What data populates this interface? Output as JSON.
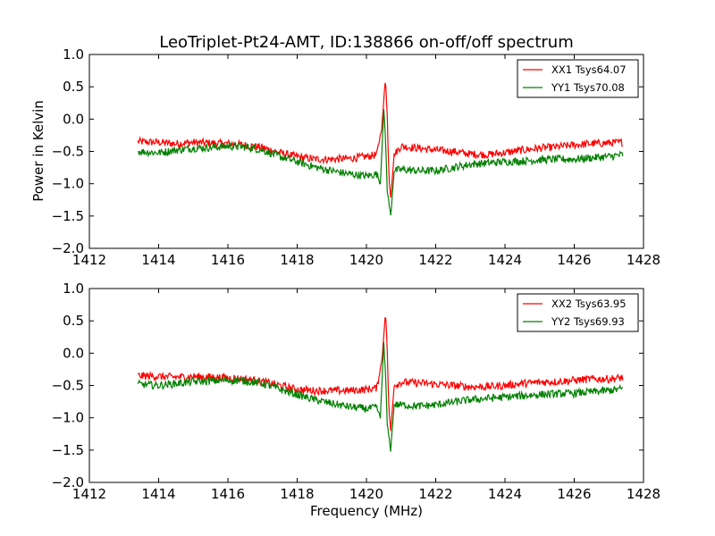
{
  "chart_data": {
    "type": "line",
    "title": "LeoTriplet-Pt24-AMT, ID:138866 on-off/off spectrum",
    "xlabel": "Frequency (MHz)",
    "ylabel": "Power in Kelvin",
    "xlim": [
      1412,
      1428
    ],
    "ylim": [
      -2.0,
      1.0
    ],
    "xticks": [
      "1412",
      "1414",
      "1416",
      "1418",
      "1420",
      "1422",
      "1424",
      "1426",
      "1428"
    ],
    "yticks": [
      "1.0",
      "0.5",
      "0.0",
      "−0.5",
      "−1.0",
      "−1.5",
      "−2.0"
    ],
    "grid": false,
    "legend_position": "top-right",
    "panels": [
      {
        "series": [
          {
            "name": "XX1 Tsys64.07",
            "color": "#ff0000",
            "x": [
              1413.4,
              1414.0,
              1414.5,
              1415.0,
              1415.5,
              1416.0,
              1416.5,
              1417.0,
              1417.5,
              1418.0,
              1418.5,
              1419.0,
              1419.5,
              1420.0,
              1420.3,
              1420.45,
              1420.55,
              1420.6,
              1420.65,
              1420.7,
              1420.8,
              1421.0,
              1421.5,
              1422.0,
              1422.5,
              1423.0,
              1423.5,
              1424.0,
              1424.5,
              1425.0,
              1425.5,
              1426.0,
              1426.5,
              1427.0,
              1427.4
            ],
            "y": [
              -0.35,
              -0.36,
              -0.38,
              -0.36,
              -0.37,
              -0.38,
              -0.4,
              -0.44,
              -0.52,
              -0.58,
              -0.62,
              -0.62,
              -0.61,
              -0.58,
              -0.55,
              -0.1,
              0.65,
              0.05,
              -0.9,
              -1.2,
              -0.55,
              -0.42,
              -0.45,
              -0.48,
              -0.5,
              -0.54,
              -0.55,
              -0.52,
              -0.48,
              -0.45,
              -0.43,
              -0.4,
              -0.38,
              -0.37,
              -0.36
            ]
          },
          {
            "name": "YY1 Tsys70.08",
            "color": "#008000",
            "x": [
              1413.4,
              1414.0,
              1414.5,
              1415.0,
              1415.5,
              1416.0,
              1416.5,
              1417.0,
              1417.5,
              1418.0,
              1418.5,
              1419.0,
              1419.5,
              1420.0,
              1420.3,
              1420.4,
              1420.5,
              1420.55,
              1420.6,
              1420.7,
              1420.8,
              1421.0,
              1421.5,
              1422.0,
              1422.5,
              1423.0,
              1423.5,
              1424.0,
              1424.5,
              1425.0,
              1425.5,
              1426.0,
              1426.5,
              1427.0,
              1427.4
            ],
            "y": [
              -0.5,
              -0.52,
              -0.48,
              -0.45,
              -0.44,
              -0.42,
              -0.43,
              -0.48,
              -0.58,
              -0.66,
              -0.74,
              -0.8,
              -0.85,
              -0.88,
              -0.85,
              -1.0,
              0.15,
              -0.3,
              -1.1,
              -1.5,
              -0.8,
              -0.78,
              -0.8,
              -0.8,
              -0.75,
              -0.7,
              -0.68,
              -0.66,
              -0.65,
              -0.63,
              -0.62,
              -0.62,
              -0.6,
              -0.58,
              -0.55
            ]
          }
        ]
      },
      {
        "series": [
          {
            "name": "XX2 Tsys63.95",
            "color": "#ff0000",
            "x": [
              1413.4,
              1414.0,
              1414.5,
              1415.0,
              1415.5,
              1416.0,
              1416.5,
              1417.0,
              1417.5,
              1418.0,
              1418.5,
              1419.0,
              1419.5,
              1420.0,
              1420.3,
              1420.45,
              1420.55,
              1420.6,
              1420.65,
              1420.7,
              1420.8,
              1421.0,
              1421.5,
              1422.0,
              1422.5,
              1423.0,
              1423.5,
              1424.0,
              1424.5,
              1425.0,
              1425.5,
              1426.0,
              1426.5,
              1427.0,
              1427.4
            ],
            "y": [
              -0.35,
              -0.36,
              -0.37,
              -0.36,
              -0.37,
              -0.38,
              -0.4,
              -0.44,
              -0.5,
              -0.56,
              -0.58,
              -0.58,
              -0.58,
              -0.56,
              -0.54,
              -0.1,
              0.65,
              0.05,
              -0.9,
              -1.2,
              -0.5,
              -0.45,
              -0.46,
              -0.48,
              -0.5,
              -0.52,
              -0.52,
              -0.5,
              -0.47,
              -0.45,
              -0.44,
              -0.42,
              -0.4,
              -0.4,
              -0.38
            ]
          },
          {
            "name": "YY2 Tsys69.93",
            "color": "#008000",
            "x": [
              1413.4,
              1414.0,
              1414.5,
              1415.0,
              1415.5,
              1416.0,
              1416.5,
              1417.0,
              1417.5,
              1418.0,
              1418.5,
              1419.0,
              1419.5,
              1420.0,
              1420.3,
              1420.4,
              1420.5,
              1420.55,
              1420.6,
              1420.7,
              1420.8,
              1421.0,
              1421.5,
              1422.0,
              1422.5,
              1423.0,
              1423.5,
              1424.0,
              1424.5,
              1425.0,
              1425.5,
              1426.0,
              1426.5,
              1427.0,
              1427.4
            ],
            "y": [
              -0.48,
              -0.5,
              -0.47,
              -0.44,
              -0.43,
              -0.42,
              -0.43,
              -0.47,
              -0.56,
              -0.64,
              -0.72,
              -0.78,
              -0.83,
              -0.86,
              -0.84,
              -1.0,
              0.15,
              -0.3,
              -1.1,
              -1.5,
              -0.8,
              -0.8,
              -0.82,
              -0.8,
              -0.76,
              -0.72,
              -0.7,
              -0.68,
              -0.66,
              -0.64,
              -0.63,
              -0.62,
              -0.6,
              -0.58,
              -0.55
            ]
          }
        ]
      }
    ]
  }
}
